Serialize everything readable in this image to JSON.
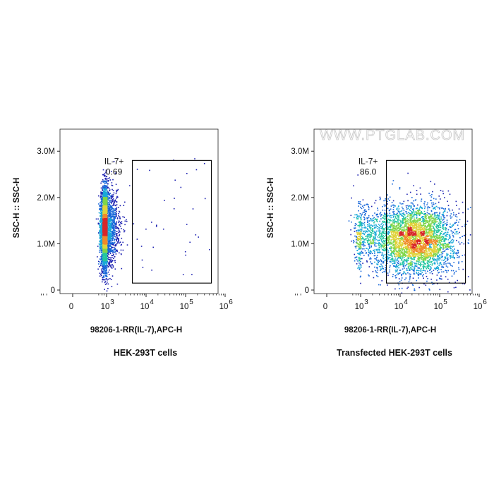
{
  "watermark": "WWW.PTGLAB.COM",
  "colors": {
    "axis": "#222222",
    "gate": "#000000",
    "density": [
      "#1a1fb0",
      "#1565d8",
      "#19a9d8",
      "#23c6a0",
      "#7fd64a",
      "#e0d23a",
      "#f08a2a",
      "#d8262a"
    ]
  },
  "chart_data": [
    {
      "type": "scatter",
      "title": "HEK-293T cells",
      "xlabel": "98206-1-RR(IL-7),APC-H",
      "ylabel": "SSC-H :: SSC-H",
      "xscale": "biexponential",
      "x_ticks": [
        "0",
        "10",
        "10",
        "10",
        "10"
      ],
      "x_tick_exponents": [
        "",
        "3",
        "4",
        "5",
        "6"
      ],
      "y_ticks": [
        "0",
        "1.0M",
        "2.0M",
        "3.0M"
      ],
      "ylim": [
        0,
        3400000
      ],
      "gate": {
        "label": "IL-7+",
        "value": "0.69",
        "x_range": [
          4500,
          450000
        ],
        "y_range": [
          150000,
          2800000
        ]
      },
      "populations": [
        {
          "x_center": 700,
          "x_spread_decades": 0.2,
          "y_center": 1350000,
          "y_spread": 420000,
          "weight": 0.99
        },
        {
          "x_center": 40000,
          "x_spread_decades": 0.9,
          "y_center": 1500000,
          "y_spread": 800000,
          "weight": 0.01
        }
      ]
    },
    {
      "type": "scatter",
      "title": "Transfected HEK-293T cells",
      "xlabel": "98206-1-RR(IL-7),APC-H",
      "ylabel": "SSC-H :: SSC-H",
      "xscale": "biexponential",
      "x_ticks": [
        "0",
        "10",
        "10",
        "10",
        "10"
      ],
      "x_tick_exponents": [
        "",
        "3",
        "4",
        "5",
        "6"
      ],
      "y_ticks": [
        "0",
        "1.0M",
        "2.0M",
        "3.0M"
      ],
      "ylim": [
        0,
        3400000
      ],
      "gate": {
        "label": "IL-7+",
        "value": "86.0",
        "x_range": [
          4500,
          450000
        ],
        "y_range": [
          150000,
          2800000
        ]
      },
      "populations": [
        {
          "x_center": 25000,
          "x_spread_decades": 0.5,
          "y_center": 1100000,
          "y_spread": 380000,
          "weight": 0.86
        },
        {
          "x_center": 1500,
          "x_spread_decades": 0.4,
          "y_center": 1150000,
          "y_spread": 350000,
          "weight": 0.14
        }
      ]
    }
  ]
}
